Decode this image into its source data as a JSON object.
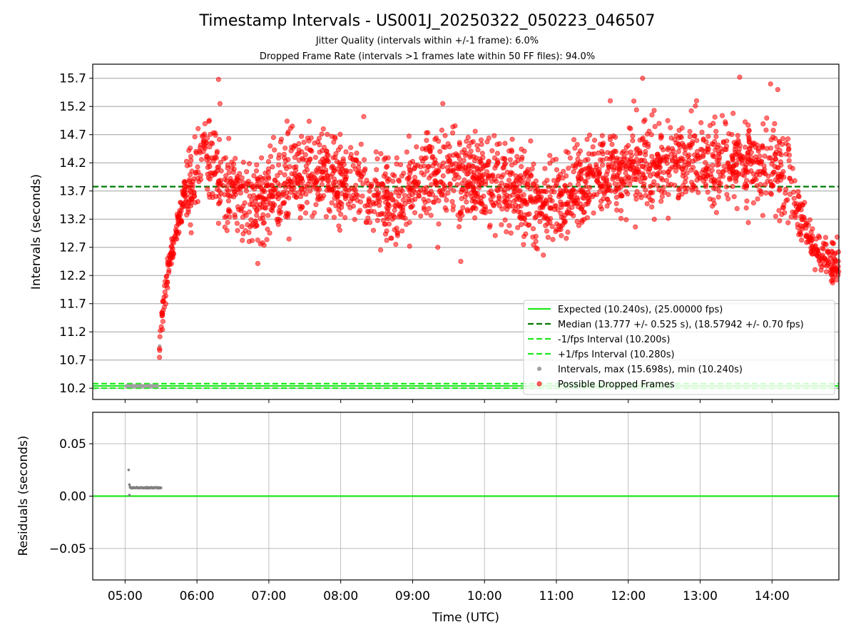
{
  "chart_data": [
    {
      "type": "scatter",
      "title": "Timestamp Intervals - US001J_20250322_050223_046507",
      "subtitle_1": "Jitter Quality (intervals within +/-1 frame): 6.0%",
      "subtitle_2": "Dropped Frame Rate (intervals >1 frames late within 50 FF files): 94.0%",
      "xlabel": "",
      "ylabel": "Intervals (seconds)",
      "xlim_hours": [
        4.55,
        14.93
      ],
      "ylim": [
        10.0,
        15.95
      ],
      "y_ticks": [
        "10.2",
        "10.7",
        "11.2",
        "11.7",
        "12.2",
        "12.7",
        "13.2",
        "13.7",
        "14.2",
        "14.7",
        "15.2",
        "15.7"
      ],
      "grid": true,
      "legend_position": "lower-right",
      "reference_lines": [
        {
          "name": "Expected (10.240s), (25.00000 fps)",
          "y": 10.24,
          "style": "solid",
          "color": "#1ee81e"
        },
        {
          "name": "Median (13.777 +/- 0.525 s), (18.57942 +/- 0.70 fps)",
          "y": 13.777,
          "style": "dashed",
          "color": "#007a00"
        },
        {
          "name": "-1/fps Interval (10.200s)",
          "y": 10.2,
          "style": "dashed",
          "color": "#1ee81e"
        },
        {
          "name": "+1/fps Interval (10.280s)",
          "y": 10.28,
          "style": "dashed",
          "color": "#1ee81e"
        }
      ],
      "series": [
        {
          "name": "Intervals, max (15.698s), min (10.240s)",
          "color": "#a0a0a0",
          "note": "nominal intervals near 10.24 s from 05:01 to 05:30",
          "points": [
            [
              5.02,
              10.24
            ],
            [
              5.12,
              10.24
            ],
            [
              5.22,
              10.24
            ],
            [
              5.32,
              10.24
            ],
            [
              5.42,
              10.24
            ],
            [
              5.48,
              10.95
            ]
          ]
        },
        {
          "name": "Possible Dropped Frames",
          "color": "#ff0000",
          "trend": [
            [
              5.47,
              10.8
            ],
            [
              5.5,
              11.3
            ],
            [
              5.55,
              11.9
            ],
            [
              5.6,
              12.3
            ],
            [
              5.67,
              12.7
            ],
            [
              5.75,
              13.2
            ],
            [
              5.83,
              13.7
            ],
            [
              6.0,
              14.1
            ],
            [
              6.15,
              14.3
            ],
            [
              6.3,
              13.9
            ],
            [
              6.5,
              13.6
            ],
            [
              6.7,
              13.4
            ],
            [
              7.0,
              13.6
            ],
            [
              7.3,
              14.0
            ],
            [
              7.6,
              14.0
            ],
            [
              8.0,
              13.9
            ],
            [
              8.3,
              13.7
            ],
            [
              8.5,
              13.55
            ],
            [
              8.8,
              13.6
            ],
            [
              9.0,
              13.8
            ],
            [
              9.3,
              14.1
            ],
            [
              9.6,
              14.0
            ],
            [
              9.9,
              13.9
            ],
            [
              10.2,
              13.85
            ],
            [
              10.5,
              13.6
            ],
            [
              10.8,
              13.45
            ],
            [
              11.0,
              13.5
            ],
            [
              11.3,
              13.8
            ],
            [
              11.6,
              13.95
            ],
            [
              12.0,
              14.1
            ],
            [
              12.4,
              14.2
            ],
            [
              12.8,
              14.2
            ],
            [
              13.2,
              14.15
            ],
            [
              13.6,
              14.2
            ],
            [
              14.0,
              14.15
            ],
            [
              14.2,
              13.9
            ],
            [
              14.35,
              13.4
            ],
            [
              14.5,
              12.9
            ],
            [
              14.65,
              12.6
            ],
            [
              14.8,
              12.45
            ],
            [
              14.93,
              12.4
            ]
          ],
          "spread_sd": 0.38,
          "notable_points": [
            [
              6.3,
              15.68
            ],
            [
              6.32,
              15.25
            ],
            [
              8.32,
              15.02
            ],
            [
              9.42,
              15.25
            ],
            [
              9.35,
              12.7
            ],
            [
              9.67,
              12.45
            ],
            [
              12.2,
              15.7
            ],
            [
              12.33,
              15.05
            ],
            [
              12.95,
              15.3
            ],
            [
              13.55,
              15.72
            ],
            [
              13.98,
              15.6
            ],
            [
              14.08,
              15.5
            ],
            [
              11.75,
              15.3
            ]
          ]
        }
      ]
    },
    {
      "type": "scatter",
      "title": "",
      "xlabel": "Time (UTC)",
      "ylabel": "Residuals (seconds)",
      "xlim_hours": [
        4.55,
        14.93
      ],
      "ylim": [
        -0.08,
        0.08
      ],
      "x_ticks": [
        "05:00",
        "06:00",
        "07:00",
        "08:00",
        "09:00",
        "10:00",
        "11:00",
        "12:00",
        "13:00",
        "14:00"
      ],
      "y_ticks": [
        "−0.05",
        "0.00",
        "0.05"
      ],
      "grid": true,
      "reference_lines": [
        {
          "y": 0.0,
          "style": "solid",
          "color": "#1ee81e"
        }
      ],
      "series": [
        {
          "color": "#808080",
          "points": [
            [
              5.05,
              0.025
            ],
            [
              5.06,
              0.011
            ],
            [
              5.07,
              0.009
            ],
            [
              5.1,
              0.008
            ],
            [
              5.2,
              0.008
            ],
            [
              5.3,
              0.008
            ],
            [
              5.4,
              0.008
            ],
            [
              5.5,
              0.008
            ],
            [
              5.06,
              0.001
            ]
          ]
        }
      ]
    }
  ]
}
